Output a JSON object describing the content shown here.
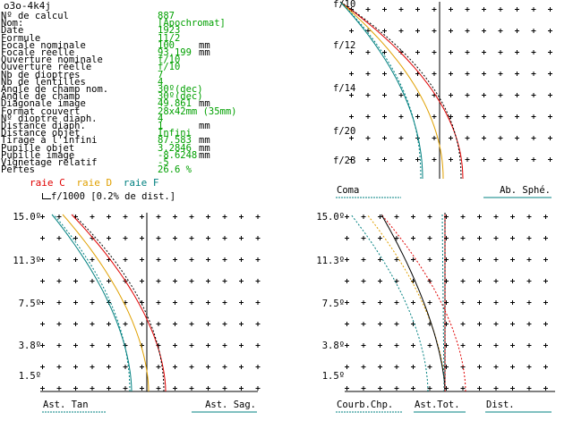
{
  "window": {
    "title": "o3o-4k4j"
  },
  "params": [
    {
      "label": "Nº de calcul",
      "value": "887",
      "unit": ""
    },
    {
      "label": "Nom:",
      "value": "[Apochromat]",
      "unit": ""
    },
    {
      "label": "Date",
      "value": "1923",
      "unit": ""
    },
    {
      "label": "Formule",
      "value": "11/2",
      "unit": ""
    },
    {
      "label": "Focale nominale",
      "value": "100",
      "unit": "mm"
    },
    {
      "label": "Focale réelle",
      "value": "93.199",
      "unit": "mm"
    },
    {
      "label": "Ouverture nominale",
      "value": "f/10",
      "unit": ""
    },
    {
      "label": "Ouverture réelle",
      "value": "f/10",
      "unit": ""
    },
    {
      "label": "Nb de dioptres",
      "value": "7",
      "unit": ""
    },
    {
      "label": "Nb de lentilles",
      "value": "4",
      "unit": ""
    },
    {
      "label": "Angle de champ nom.",
      "value": "30º(dec)",
      "unit": ""
    },
    {
      "label": "Angle de champ",
      "value": "30º(dec)",
      "unit": ""
    },
    {
      "label": "Diagonale image",
      "value": "49.861",
      "unit": "mm"
    },
    {
      "label": "Format couvert",
      "value": "28x42mm (35mm)",
      "unit": ""
    },
    {
      "label": "Nº dioptre diaph.",
      "value": "4",
      "unit": ""
    },
    {
      "label": "Distance diaph.",
      "value": "1",
      "unit": "mm"
    },
    {
      "label": "Distance objet",
      "value": "Infini",
      "unit": ""
    },
    {
      "label": "Tirage à l'infini",
      "value": "87.583",
      "unit": "mm"
    },
    {
      "label": "Pupille objet",
      "value": "3.2846",
      "unit": "mm"
    },
    {
      "label": "Pupille image",
      "value": "-8.6248",
      "unit": "mm"
    },
    {
      "label": "Vignetage relatif",
      "value": "-5",
      "unit": ""
    },
    {
      "label": "Pertes",
      "value": "26.6 %",
      "unit": ""
    }
  ],
  "legend": {
    "raie_c": "raie C",
    "raie_d": "raie D",
    "raie_f": "raie F",
    "colors": {
      "c": "#e00000",
      "d": "#e0a000",
      "f": "#008080"
    }
  },
  "scale_note": "f/1000 [0.2% de dist.]",
  "coma_panel": {
    "aperture_ticks": [
      "f/10",
      "f/12",
      "f/14",
      "f/20",
      "f/28"
    ],
    "label_left": "Coma",
    "label_right": "Ab. Sphé."
  },
  "ast_panel": {
    "field_ticks": [
      "15.0º",
      "11.3º",
      "7.5º",
      "3.8º",
      "1.5º"
    ],
    "label_left": "Ast. Tan",
    "label_right": "Ast. Sag."
  },
  "curv_panel": {
    "field_ticks": [
      "15.0º",
      "11.3º",
      "7.5º",
      "3.8º",
      "1.5º"
    ],
    "label_left": "Courb.Chp.",
    "label_mid": "Ast.Tot.",
    "label_right": "Dist."
  }
}
